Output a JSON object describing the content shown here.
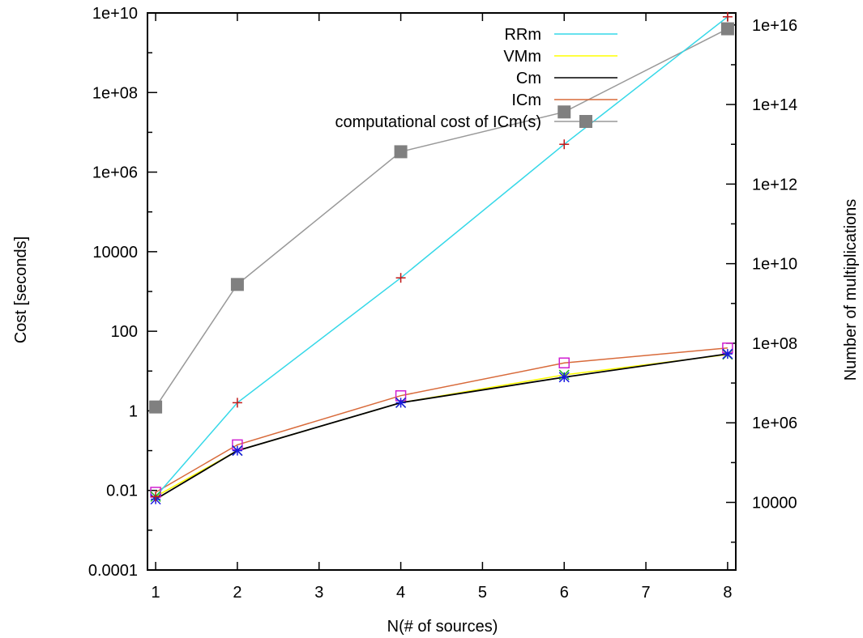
{
  "chart_data": {
    "type": "line",
    "xlabel": "N(# of sources)",
    "ylabel": "Cost [seconds]",
    "y2label": "Number of multiplications",
    "xlim": [
      0.9,
      8.1
    ],
    "ylim": [
      0.0001,
      10000000000
    ],
    "y2lim": [
      200,
      2e+16
    ],
    "yscale": "log",
    "y2scale": "log",
    "grid": false,
    "legend_position": "top-right",
    "x_ticks": [
      1,
      2,
      3,
      4,
      5,
      6,
      7,
      8
    ],
    "x_tick_labels": [
      "1",
      "2",
      "3",
      "4",
      "5",
      "6",
      "7",
      "8"
    ],
    "y_ticks": [
      0.0001,
      0.01,
      1,
      100,
      10000,
      1000000,
      100000000,
      10000000000
    ],
    "y_tick_labels": [
      "0.0001",
      "0.01",
      "1",
      "100",
      "10000",
      "1e+06",
      "1e+08",
      "1e+10"
    ],
    "y2_ticks": [
      10000,
      1000000,
      100000000,
      10000000000,
      1000000000000,
      100000000000000,
      10000000000000000
    ],
    "y2_tick_labels": [
      "10000",
      "1e+06",
      "1e+08",
      "1e+10",
      "1e+12",
      "1e+14",
      "1e+16"
    ],
    "series": [
      {
        "name": "RRm",
        "color": "#35d8e8",
        "marker": "plus",
        "marker_color": "#c01818",
        "x": [
          1,
          2,
          4,
          6,
          8
        ],
        "y": [
          0.007,
          1.6,
          2200,
          5000000,
          8000000000
        ]
      },
      {
        "name": "VMm",
        "color": "#ffff00",
        "marker": "x",
        "marker_color": "#22b822",
        "x": [
          1,
          2,
          4,
          6,
          8
        ],
        "y": [
          0.007,
          0.1,
          1.6,
          8,
          26
        ]
      },
      {
        "name": "Cm",
        "color": "#000000",
        "marker": "star",
        "marker_color": "#1818e0",
        "x": [
          1,
          2,
          4,
          6,
          8
        ],
        "y": [
          0.006,
          0.1,
          1.6,
          7,
          27
        ]
      },
      {
        "name": "ICm",
        "color": "#d86a3a",
        "marker": "square-open",
        "marker_color": "#d020d0",
        "x": [
          1,
          2,
          4,
          6,
          8
        ],
        "y": [
          0.009,
          0.14,
          2.4,
          16,
          38
        ]
      },
      {
        "name": "computational  cost of ICm(s)",
        "color": "#999999",
        "marker": "square-filled",
        "marker_color": "#808080",
        "axis": "y2",
        "x": [
          1,
          2,
          4,
          6,
          8
        ],
        "y": [
          2500000,
          3000000000,
          6500000000000,
          65000000000000,
          8000000000000000
        ]
      }
    ]
  }
}
